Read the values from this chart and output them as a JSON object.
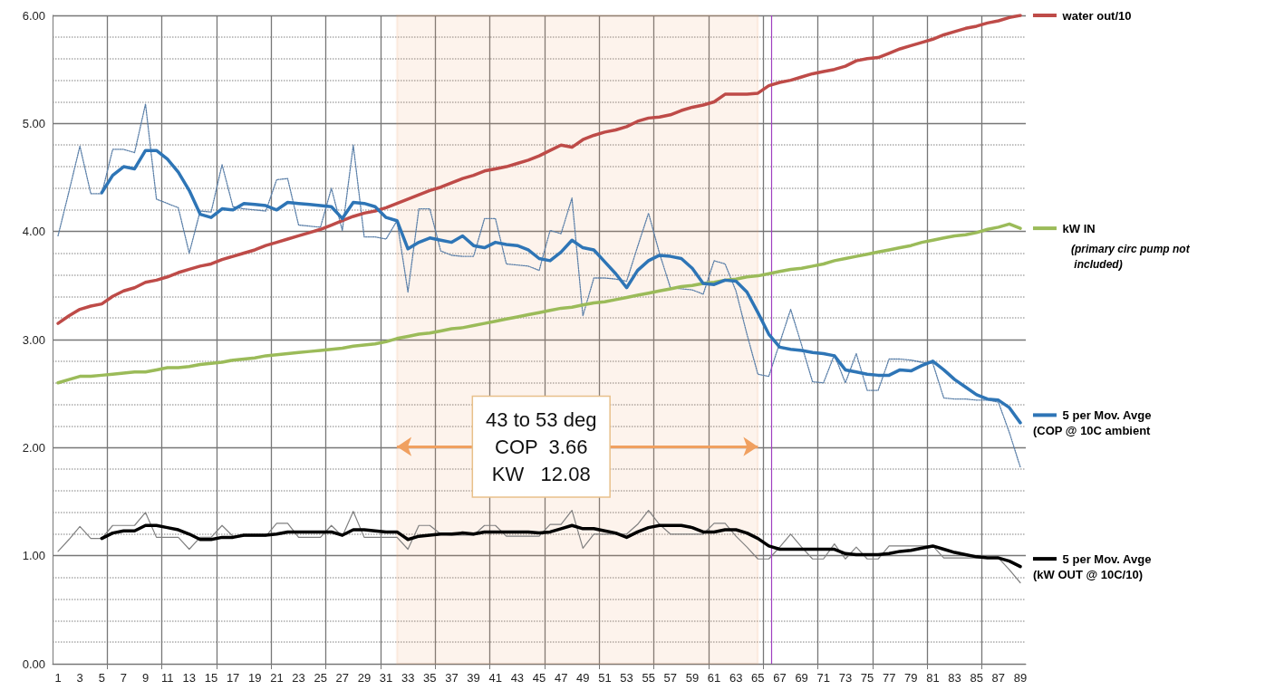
{
  "chart_data": {
    "type": "line",
    "x": [
      1,
      2,
      3,
      4,
      5,
      6,
      7,
      8,
      9,
      10,
      11,
      12,
      13,
      14,
      15,
      16,
      17,
      18,
      19,
      20,
      21,
      22,
      23,
      24,
      25,
      26,
      27,
      28,
      29,
      30,
      31,
      32,
      33,
      34,
      35,
      36,
      37,
      38,
      39,
      40,
      41,
      42,
      43,
      44,
      45,
      46,
      47,
      48,
      49,
      50,
      51,
      52,
      53,
      54,
      55,
      56,
      57,
      58,
      59,
      60,
      61,
      62,
      63,
      64,
      65,
      66,
      67,
      68,
      69,
      70,
      71,
      72,
      73,
      74,
      75,
      76,
      77,
      78,
      79,
      80,
      81,
      82,
      83,
      84,
      85,
      86,
      87,
      88,
      89
    ],
    "series": [
      {
        "name": "water out/10",
        "color": "#be4b48",
        "line_style": "solid",
        "values": [
          3.15,
          3.22,
          3.28,
          3.31,
          3.33,
          3.4,
          3.45,
          3.48,
          3.53,
          3.55,
          3.58,
          3.62,
          3.65,
          3.68,
          3.7,
          3.74,
          3.77,
          3.8,
          3.83,
          3.87,
          3.9,
          3.93,
          3.96,
          3.99,
          4.02,
          4.06,
          4.1,
          4.14,
          4.17,
          4.19,
          4.22,
          4.26,
          4.3,
          4.34,
          4.38,
          4.41,
          4.45,
          4.49,
          4.52,
          4.56,
          4.58,
          4.6,
          4.63,
          4.66,
          4.7,
          4.75,
          4.8,
          4.78,
          4.85,
          4.89,
          4.92,
          4.94,
          4.97,
          5.02,
          5.05,
          5.06,
          5.08,
          5.12,
          5.15,
          5.17,
          5.2,
          5.27,
          5.27,
          5.27,
          5.28,
          5.35,
          5.38,
          5.4,
          5.43,
          5.46,
          5.48,
          5.5,
          5.53,
          5.58,
          5.6,
          5.61,
          5.65,
          5.69,
          5.72,
          5.75,
          5.78,
          5.82,
          5.85,
          5.88,
          5.9,
          5.93,
          5.95,
          5.98,
          6.0
        ]
      },
      {
        "name": "kW IN",
        "color": "#9bbb59",
        "line_style": "solid",
        "values": [
          2.6,
          2.63,
          2.66,
          2.66,
          2.67,
          2.68,
          2.69,
          2.7,
          2.7,
          2.72,
          2.74,
          2.74,
          2.75,
          2.77,
          2.78,
          2.79,
          2.81,
          2.82,
          2.83,
          2.85,
          2.86,
          2.87,
          2.88,
          2.89,
          2.9,
          2.91,
          2.92,
          2.94,
          2.95,
          2.96,
          2.98,
          3.01,
          3.03,
          3.05,
          3.06,
          3.08,
          3.1,
          3.11,
          3.13,
          3.15,
          3.17,
          3.19,
          3.21,
          3.23,
          3.25,
          3.27,
          3.29,
          3.3,
          3.32,
          3.34,
          3.35,
          3.37,
          3.39,
          3.41,
          3.43,
          3.45,
          3.47,
          3.49,
          3.5,
          3.52,
          3.53,
          3.55,
          3.56,
          3.58,
          3.59,
          3.61,
          3.63,
          3.65,
          3.66,
          3.68,
          3.7,
          3.73,
          3.75,
          3.77,
          3.79,
          3.81,
          3.83,
          3.85,
          3.87,
          3.9,
          3.92,
          3.94,
          3.96,
          3.97,
          3.99,
          4.02,
          4.04,
          4.07,
          4.03
        ]
      },
      {
        "color": "#5a7fa8",
        "line_style": "dotted",
        "values": [
          3.96,
          4.37,
          4.79,
          4.35,
          4.35,
          4.76,
          4.76,
          4.73,
          5.18,
          4.3,
          4.26,
          4.22,
          3.8,
          4.19,
          4.18,
          4.62,
          4.23,
          4.21,
          4.2,
          4.19,
          4.48,
          4.49,
          4.06,
          4.05,
          4.04,
          4.4,
          4.01,
          4.8,
          3.95,
          3.95,
          3.93,
          4.1,
          3.44,
          4.21,
          4.21,
          3.82,
          3.78,
          3.77,
          3.77,
          4.12,
          4.12,
          3.7,
          3.69,
          3.68,
          3.64,
          4.01,
          3.98,
          4.31,
          3.22,
          3.57,
          3.57,
          3.56,
          3.54,
          3.86,
          4.17,
          3.8,
          3.48,
          3.47,
          3.46,
          3.42,
          3.73,
          3.7,
          3.45,
          3.05,
          2.68,
          2.66,
          2.97,
          3.28,
          2.95,
          2.61,
          2.6,
          2.86,
          2.6,
          2.87,
          2.53,
          2.53,
          2.82,
          2.82,
          2.81,
          2.79,
          2.78,
          2.46,
          2.45,
          2.45,
          2.44,
          2.44,
          2.42,
          2.14,
          1.82
        ]
      },
      {
        "name": "5 per Mov. Avge (COP @ 10C ambient",
        "color": "#2e75b6",
        "line_style": "solid",
        "values": [
          null,
          null,
          null,
          null,
          4.36,
          4.52,
          4.6,
          4.58,
          4.75,
          4.75,
          4.67,
          4.55,
          4.38,
          4.16,
          4.13,
          4.21,
          4.2,
          4.26,
          4.25,
          4.24,
          4.2,
          4.27,
          4.26,
          4.25,
          4.24,
          4.23,
          4.12,
          4.27,
          4.26,
          4.23,
          4.13,
          4.1,
          3.84,
          3.9,
          3.94,
          3.92,
          3.9,
          3.96,
          3.87,
          3.85,
          3.9,
          3.88,
          3.87,
          3.83,
          3.75,
          3.73,
          3.81,
          3.92,
          3.85,
          3.83,
          3.72,
          3.61,
          3.48,
          3.64,
          3.73,
          3.78,
          3.77,
          3.75,
          3.66,
          3.52,
          3.51,
          3.55,
          3.54,
          3.44,
          3.25,
          3.05,
          2.93,
          2.91,
          2.9,
          2.88,
          2.87,
          2.85,
          2.72,
          2.7,
          2.68,
          2.67,
          2.67,
          2.72,
          2.71,
          2.76,
          2.8,
          2.72,
          2.63,
          2.56,
          2.49,
          2.45,
          2.44,
          2.37,
          2.23
        ]
      },
      {
        "color": "#808080",
        "line_style": "solid",
        "values": [
          1.04,
          1.15,
          1.27,
          1.16,
          1.16,
          1.28,
          1.28,
          1.28,
          1.4,
          1.17,
          1.17,
          1.17,
          1.06,
          1.17,
          1.17,
          1.28,
          1.18,
          1.18,
          1.18,
          1.18,
          1.3,
          1.3,
          1.17,
          1.17,
          1.17,
          1.28,
          1.18,
          1.41,
          1.17,
          1.17,
          1.17,
          1.17,
          1.06,
          1.28,
          1.28,
          1.2,
          1.19,
          1.19,
          1.19,
          1.28,
          1.28,
          1.18,
          1.18,
          1.18,
          1.18,
          1.29,
          1.29,
          1.42,
          1.07,
          1.2,
          1.2,
          1.2,
          1.2,
          1.29,
          1.42,
          1.29,
          1.2,
          1.2,
          1.2,
          1.2,
          1.3,
          1.3,
          1.18,
          1.08,
          0.97,
          0.97,
          1.08,
          1.2,
          1.08,
          0.97,
          0.97,
          1.11,
          0.97,
          1.08,
          0.97,
          0.97,
          1.09,
          1.09,
          1.09,
          1.09,
          1.09,
          0.98,
          0.98,
          0.98,
          0.98,
          0.98,
          0.98,
          0.87,
          0.75
        ]
      },
      {
        "name": "5 per Mov. Avge (kW OUT @ 10C/10)",
        "color": "#000000",
        "line_style": "solid",
        "values": [
          null,
          null,
          null,
          null,
          1.16,
          1.21,
          1.23,
          1.23,
          1.28,
          1.28,
          1.26,
          1.24,
          1.2,
          1.15,
          1.15,
          1.17,
          1.17,
          1.19,
          1.19,
          1.19,
          1.2,
          1.22,
          1.22,
          1.22,
          1.22,
          1.22,
          1.19,
          1.24,
          1.24,
          1.23,
          1.22,
          1.22,
          1.15,
          1.18,
          1.19,
          1.2,
          1.2,
          1.21,
          1.2,
          1.22,
          1.22,
          1.22,
          1.22,
          1.22,
          1.21,
          1.22,
          1.25,
          1.28,
          1.25,
          1.25,
          1.23,
          1.21,
          1.17,
          1.22,
          1.26,
          1.28,
          1.28,
          1.28,
          1.26,
          1.22,
          1.22,
          1.24,
          1.24,
          1.21,
          1.16,
          1.09,
          1.06,
          1.06,
          1.06,
          1.06,
          1.06,
          1.06,
          1.02,
          1.01,
          1.01,
          1.01,
          1.02,
          1.04,
          1.05,
          1.07,
          1.09,
          1.06,
          1.03,
          1.01,
          0.99,
          0.98,
          0.98,
          0.95,
          0.9
        ]
      }
    ],
    "xlim": [
      0.5,
      89.5
    ],
    "xticks": [
      1,
      3,
      5,
      {
        "value": 5.5,
        "label": null
      },
      7,
      9,
      {
        "value": 10.5,
        "label": null
      },
      11,
      13,
      15,
      {
        "value": 15.5,
        "label": null
      },
      17,
      19,
      {
        "value": 20.5,
        "label": null
      },
      21,
      23,
      25,
      {
        "value": 25.5,
        "label": null
      },
      27,
      29,
      {
        "value": 30.5,
        "label": null
      },
      31,
      33,
      35,
      {
        "value": 35.5,
        "label": null
      },
      37,
      39,
      {
        "value": 40.5,
        "label": null
      },
      41,
      43,
      45,
      {
        "value": 45.5,
        "label": null
      },
      47,
      49,
      {
        "value": 50.5,
        "label": null
      },
      51,
      53,
      55,
      {
        "value": 55.5,
        "label": null
      },
      57,
      59,
      {
        "value": 60.5,
        "label": null
      },
      61,
      63,
      65,
      {
        "value": 65.5,
        "label": null
      },
      67,
      69,
      {
        "value": 70.5,
        "label": null
      },
      71,
      73,
      75,
      {
        "value": 75.5,
        "label": null
      },
      77,
      79,
      {
        "value": 80.5,
        "label": null
      },
      81,
      83,
      85,
      {
        "value": 85.5,
        "label": null
      },
      87,
      89
    ],
    "ylim": [
      0,
      6
    ],
    "yticks": [
      {
        "value": 0,
        "label": "0.00"
      },
      {
        "value": 1,
        "label": "1.00"
      },
      {
        "value": 2,
        "label": "2.00"
      },
      {
        "value": 3,
        "label": "3.00"
      },
      {
        "value": 4,
        "label": "4.00"
      },
      {
        "value": 5,
        "label": "5.00"
      },
      {
        "value": 6,
        "label": "6.00"
      }
    ],
    "grid": true,
    "legend": "right",
    "marker": "none",
    "bands": [
      {
        "axis": "x",
        "from": 32,
        "to": 65,
        "color": "#f0a060",
        "label": "43 to 53 deg\nCOP  3.66\nKW   12.08"
      }
    ],
    "ref_lines": [
      {
        "axis": "x",
        "value": 66.2,
        "color": "#a040c0"
      }
    ],
    "annotations": [
      "(primary circ pump not included)"
    ]
  }
}
